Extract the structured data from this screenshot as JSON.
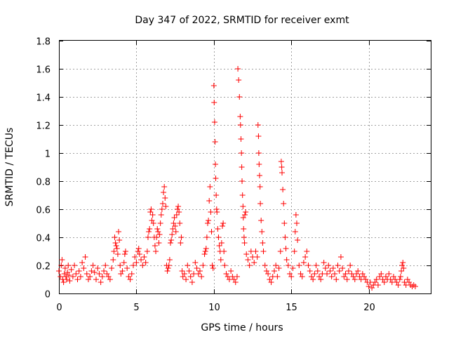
{
  "chart_data": {
    "type": "scatter",
    "title": "Day 347 of 2022, SRMTID for receiver exmt",
    "xlabel": "GPS time / hours",
    "ylabel": "SRMTID / TECUs",
    "xlim": [
      0,
      24
    ],
    "ylim": [
      0,
      1.8
    ],
    "xticks": [
      0,
      5,
      10,
      15,
      20
    ],
    "xtick_labels": [
      "0",
      "5",
      "10",
      "15",
      "20"
    ],
    "yticks": [
      0,
      0.2,
      0.4,
      0.6,
      0.8,
      1.0,
      1.2,
      1.4,
      1.6,
      1.8
    ],
    "ytick_labels": [
      "0",
      "0.2",
      "0.4",
      "0.6",
      "0.8",
      "1",
      "1.2",
      "1.4",
      "1.6",
      "1.8"
    ],
    "grid": true,
    "marker": "plus",
    "color": "#ff0000",
    "series": [
      {
        "name": "SRMTID",
        "points": [
          [
            0.0,
            0.16
          ],
          [
            0.1,
            0.12
          ],
          [
            0.15,
            0.2
          ],
          [
            0.2,
            0.24
          ],
          [
            0.25,
            0.1
          ],
          [
            0.3,
            0.08
          ],
          [
            0.35,
            0.14
          ],
          [
            0.4,
            0.18
          ],
          [
            0.45,
            0.12
          ],
          [
            0.5,
            0.1
          ],
          [
            0.55,
            0.15
          ],
          [
            0.6,
            0.2
          ],
          [
            0.65,
            0.13
          ],
          [
            0.7,
            0.09
          ],
          [
            0.8,
            0.17
          ],
          [
            0.9,
            0.12
          ],
          [
            1.0,
            0.2
          ],
          [
            1.1,
            0.14
          ],
          [
            1.2,
            0.1
          ],
          [
            1.3,
            0.16
          ],
          [
            1.4,
            0.12
          ],
          [
            1.5,
            0.22
          ],
          [
            1.6,
            0.18
          ],
          [
            1.7,
            0.26
          ],
          [
            1.8,
            0.14
          ],
          [
            1.9,
            0.1
          ],
          [
            2.0,
            0.12
          ],
          [
            2.1,
            0.16
          ],
          [
            2.2,
            0.2
          ],
          [
            2.3,
            0.15
          ],
          [
            2.4,
            0.1
          ],
          [
            2.5,
            0.18
          ],
          [
            2.6,
            0.14
          ],
          [
            2.7,
            0.08
          ],
          [
            2.8,
            0.12
          ],
          [
            2.9,
            0.16
          ],
          [
            3.0,
            0.2
          ],
          [
            3.1,
            0.14
          ],
          [
            3.2,
            0.12
          ],
          [
            3.3,
            0.1
          ],
          [
            3.4,
            0.18
          ],
          [
            3.5,
            0.24
          ],
          [
            3.55,
            0.3
          ],
          [
            3.6,
            0.4
          ],
          [
            3.65,
            0.36
          ],
          [
            3.7,
            0.34
          ],
          [
            3.75,
            0.32
          ],
          [
            3.8,
            0.28
          ],
          [
            3.85,
            0.44
          ],
          [
            3.9,
            0.38
          ],
          [
            3.95,
            0.2
          ],
          [
            4.0,
            0.14
          ],
          [
            4.1,
            0.16
          ],
          [
            4.2,
            0.22
          ],
          [
            4.25,
            0.28
          ],
          [
            4.3,
            0.3
          ],
          [
            4.4,
            0.18
          ],
          [
            4.5,
            0.12
          ],
          [
            4.6,
            0.1
          ],
          [
            4.7,
            0.14
          ],
          [
            4.8,
            0.2
          ],
          [
            4.9,
            0.26
          ],
          [
            5.0,
            0.22
          ],
          [
            5.1,
            0.3
          ],
          [
            5.15,
            0.32
          ],
          [
            5.2,
            0.28
          ],
          [
            5.3,
            0.24
          ],
          [
            5.4,
            0.2
          ],
          [
            5.5,
            0.26
          ],
          [
            5.6,
            0.22
          ],
          [
            5.7,
            0.3
          ],
          [
            5.75,
            0.4
          ],
          [
            5.8,
            0.44
          ],
          [
            5.85,
            0.46
          ],
          [
            5.9,
            0.58
          ],
          [
            5.95,
            0.6
          ],
          [
            6.0,
            0.52
          ],
          [
            6.05,
            0.56
          ],
          [
            6.1,
            0.5
          ],
          [
            6.15,
            0.4
          ],
          [
            6.2,
            0.34
          ],
          [
            6.25,
            0.3
          ],
          [
            6.3,
            0.4
          ],
          [
            6.35,
            0.46
          ],
          [
            6.4,
            0.44
          ],
          [
            6.45,
            0.36
          ],
          [
            6.5,
            0.42
          ],
          [
            6.55,
            0.5
          ],
          [
            6.6,
            0.56
          ],
          [
            6.65,
            0.6
          ],
          [
            6.7,
            0.64
          ],
          [
            6.75,
            0.72
          ],
          [
            6.8,
            0.76
          ],
          [
            6.85,
            0.68
          ],
          [
            6.9,
            0.62
          ],
          [
            6.95,
            0.2
          ],
          [
            7.0,
            0.16
          ],
          [
            7.05,
            0.18
          ],
          [
            7.1,
            0.2
          ],
          [
            7.15,
            0.24
          ],
          [
            7.2,
            0.36
          ],
          [
            7.25,
            0.38
          ],
          [
            7.3,
            0.42
          ],
          [
            7.35,
            0.46
          ],
          [
            7.4,
            0.5
          ],
          [
            7.45,
            0.54
          ],
          [
            7.5,
            0.48
          ],
          [
            7.55,
            0.44
          ],
          [
            7.6,
            0.56
          ],
          [
            7.65,
            0.6
          ],
          [
            7.7,
            0.62
          ],
          [
            7.75,
            0.58
          ],
          [
            7.8,
            0.5
          ],
          [
            7.85,
            0.36
          ],
          [
            7.9,
            0.4
          ],
          [
            7.95,
            0.16
          ],
          [
            8.0,
            0.12
          ],
          [
            8.1,
            0.14
          ],
          [
            8.2,
            0.1
          ],
          [
            8.3,
            0.2
          ],
          [
            8.4,
            0.16
          ],
          [
            8.5,
            0.12
          ],
          [
            8.6,
            0.08
          ],
          [
            8.7,
            0.14
          ],
          [
            8.8,
            0.22
          ],
          [
            8.9,
            0.18
          ],
          [
            9.0,
            0.14
          ],
          [
            9.1,
            0.16
          ],
          [
            9.2,
            0.12
          ],
          [
            9.3,
            0.2
          ],
          [
            9.4,
            0.28
          ],
          [
            9.45,
            0.3
          ],
          [
            9.5,
            0.32
          ],
          [
            9.55,
            0.4
          ],
          [
            9.6,
            0.5
          ],
          [
            9.65,
            0.52
          ],
          [
            9.7,
            0.66
          ],
          [
            9.75,
            0.76
          ],
          [
            9.8,
            0.58
          ],
          [
            9.85,
            0.44
          ],
          [
            9.9,
            0.2
          ],
          [
            9.95,
            0.18
          ],
          [
            10.0,
            1.48
          ],
          [
            10.02,
            1.36
          ],
          [
            10.05,
            1.22
          ],
          [
            10.08,
            1.08
          ],
          [
            10.1,
            0.92
          ],
          [
            10.12,
            0.82
          ],
          [
            10.15,
            0.7
          ],
          [
            10.18,
            0.6
          ],
          [
            10.2,
            0.58
          ],
          [
            10.25,
            0.46
          ],
          [
            10.3,
            0.4
          ],
          [
            10.35,
            0.34
          ],
          [
            10.4,
            0.3
          ],
          [
            10.45,
            0.24
          ],
          [
            10.5,
            0.36
          ],
          [
            10.55,
            0.48
          ],
          [
            10.6,
            0.5
          ],
          [
            10.65,
            0.3
          ],
          [
            10.7,
            0.2
          ],
          [
            10.8,
            0.14
          ],
          [
            10.9,
            0.12
          ],
          [
            11.0,
            0.1
          ],
          [
            11.1,
            0.16
          ],
          [
            11.2,
            0.12
          ],
          [
            11.3,
            0.1
          ],
          [
            11.4,
            0.08
          ],
          [
            11.5,
            0.12
          ],
          [
            11.55,
            1.6
          ],
          [
            11.6,
            1.52
          ],
          [
            11.65,
            1.4
          ],
          [
            11.7,
            1.26
          ],
          [
            11.72,
            1.2
          ],
          [
            11.75,
            1.1
          ],
          [
            11.78,
            1.0
          ],
          [
            11.8,
            0.9
          ],
          [
            11.82,
            0.8
          ],
          [
            11.85,
            0.7
          ],
          [
            11.88,
            0.62
          ],
          [
            11.9,
            0.54
          ],
          [
            11.92,
            0.46
          ],
          [
            11.95,
            0.4
          ],
          [
            11.98,
            0.36
          ],
          [
            12.0,
            0.56
          ],
          [
            12.05,
            0.58
          ],
          [
            12.1,
            0.28
          ],
          [
            12.2,
            0.24
          ],
          [
            12.3,
            0.2
          ],
          [
            12.4,
            0.3
          ],
          [
            12.5,
            0.26
          ],
          [
            12.6,
            0.22
          ],
          [
            12.7,
            0.3
          ],
          [
            12.8,
            0.26
          ],
          [
            12.85,
            1.2
          ],
          [
            12.88,
            1.12
          ],
          [
            12.9,
            1.0
          ],
          [
            12.92,
            0.92
          ],
          [
            12.95,
            0.84
          ],
          [
            12.98,
            0.76
          ],
          [
            13.0,
            0.64
          ],
          [
            13.05,
            0.52
          ],
          [
            13.1,
            0.44
          ],
          [
            13.15,
            0.36
          ],
          [
            13.2,
            0.3
          ],
          [
            13.3,
            0.2
          ],
          [
            13.4,
            0.16
          ],
          [
            13.5,
            0.14
          ],
          [
            13.6,
            0.1
          ],
          [
            13.7,
            0.08
          ],
          [
            13.8,
            0.12
          ],
          [
            13.9,
            0.16
          ],
          [
            14.0,
            0.2
          ],
          [
            14.1,
            0.12
          ],
          [
            14.2,
            0.18
          ],
          [
            14.3,
            0.3
          ],
          [
            14.35,
            0.94
          ],
          [
            14.38,
            0.9
          ],
          [
            14.4,
            0.86
          ],
          [
            14.45,
            0.74
          ],
          [
            14.5,
            0.64
          ],
          [
            14.55,
            0.5
          ],
          [
            14.6,
            0.4
          ],
          [
            14.65,
            0.32
          ],
          [
            14.7,
            0.24
          ],
          [
            14.8,
            0.2
          ],
          [
            14.9,
            0.14
          ],
          [
            15.0,
            0.12
          ],
          [
            15.1,
            0.18
          ],
          [
            15.2,
            0.3
          ],
          [
            15.25,
            0.44
          ],
          [
            15.3,
            0.56
          ],
          [
            15.35,
            0.5
          ],
          [
            15.4,
            0.38
          ],
          [
            15.5,
            0.2
          ],
          [
            15.6,
            0.14
          ],
          [
            15.7,
            0.12
          ],
          [
            15.8,
            0.22
          ],
          [
            15.9,
            0.26
          ],
          [
            16.0,
            0.3
          ],
          [
            16.1,
            0.2
          ],
          [
            16.2,
            0.16
          ],
          [
            16.3,
            0.12
          ],
          [
            16.4,
            0.1
          ],
          [
            16.5,
            0.14
          ],
          [
            16.6,
            0.2
          ],
          [
            16.7,
            0.16
          ],
          [
            16.8,
            0.12
          ],
          [
            16.9,
            0.1
          ],
          [
            17.0,
            0.14
          ],
          [
            17.1,
            0.22
          ],
          [
            17.2,
            0.18
          ],
          [
            17.3,
            0.14
          ],
          [
            17.4,
            0.2
          ],
          [
            17.5,
            0.16
          ],
          [
            17.6,
            0.12
          ],
          [
            17.7,
            0.18
          ],
          [
            17.8,
            0.14
          ],
          [
            17.9,
            0.1
          ],
          [
            18.0,
            0.2
          ],
          [
            18.1,
            0.16
          ],
          [
            18.2,
            0.26
          ],
          [
            18.3,
            0.18
          ],
          [
            18.4,
            0.12
          ],
          [
            18.5,
            0.14
          ],
          [
            18.6,
            0.1
          ],
          [
            18.7,
            0.16
          ],
          [
            18.8,
            0.2
          ],
          [
            18.9,
            0.14
          ],
          [
            19.0,
            0.12
          ],
          [
            19.1,
            0.1
          ],
          [
            19.2,
            0.14
          ],
          [
            19.3,
            0.16
          ],
          [
            19.4,
            0.12
          ],
          [
            19.5,
            0.1
          ],
          [
            19.6,
            0.14
          ],
          [
            19.7,
            0.12
          ],
          [
            19.8,
            0.1
          ],
          [
            19.9,
            0.08
          ],
          [
            20.0,
            0.05
          ],
          [
            20.1,
            0.08
          ],
          [
            20.2,
            0.04
          ],
          [
            20.3,
            0.06
          ],
          [
            20.4,
            0.08
          ],
          [
            20.5,
            0.1
          ],
          [
            20.6,
            0.06
          ],
          [
            20.7,
            0.12
          ],
          [
            20.8,
            0.14
          ],
          [
            20.9,
            0.1
          ],
          [
            21.0,
            0.08
          ],
          [
            21.1,
            0.12
          ],
          [
            21.2,
            0.1
          ],
          [
            21.3,
            0.14
          ],
          [
            21.4,
            0.1
          ],
          [
            21.5,
            0.08
          ],
          [
            21.6,
            0.12
          ],
          [
            21.7,
            0.1
          ],
          [
            21.8,
            0.08
          ],
          [
            21.9,
            0.06
          ],
          [
            22.0,
            0.1
          ],
          [
            22.05,
            0.12
          ],
          [
            22.1,
            0.16
          ],
          [
            22.15,
            0.2
          ],
          [
            22.2,
            0.22
          ],
          [
            22.25,
            0.18
          ],
          [
            22.3,
            0.08
          ],
          [
            22.4,
            0.06
          ],
          [
            22.5,
            0.1
          ],
          [
            22.6,
            0.08
          ],
          [
            22.7,
            0.06
          ],
          [
            22.8,
            0.05
          ],
          [
            22.9,
            0.06
          ],
          [
            23.0,
            0.05
          ]
        ]
      }
    ]
  }
}
